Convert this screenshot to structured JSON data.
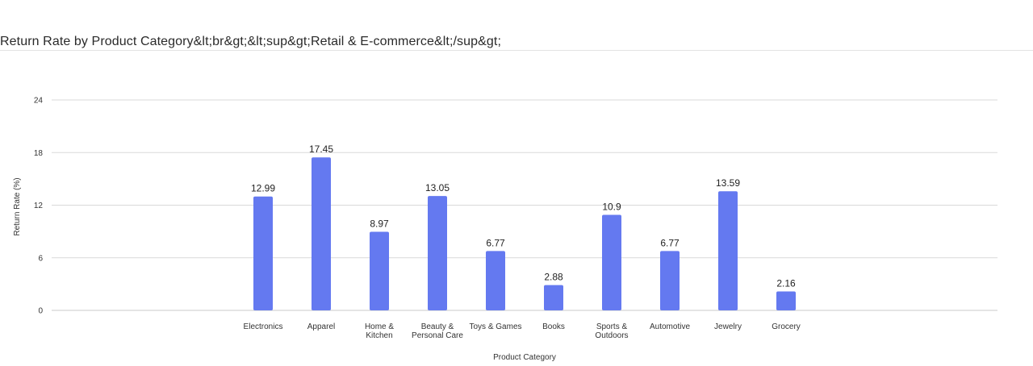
{
  "header": {
    "title": "Return Rate by Product Category&lt;br&gt;&lt;sup&gt;Retail & E-commerce&lt;/sup&gt;"
  },
  "colors": {
    "bar": "#6479f0",
    "grid": "#d9d9d9",
    "axis": "#c8c8c8"
  },
  "chart_data": {
    "type": "bar",
    "title": "Return Rate by Product Category&lt;br&gt;&lt;sup&gt;Retail & E-commerce&lt;/sup&gt;",
    "xlabel": "Product Category",
    "ylabel": "Return Rate (%)",
    "ylim": [
      0,
      24
    ],
    "yticks": [
      0,
      6,
      12,
      18,
      24
    ],
    "grid": true,
    "categories": [
      [
        "Electronics"
      ],
      [
        "Apparel"
      ],
      [
        "Home &",
        "Kitchen"
      ],
      [
        "Beauty &",
        "Personal Care"
      ],
      [
        "Toys & Games"
      ],
      [
        "Books"
      ],
      [
        "Sports &",
        "Outdoors"
      ],
      [
        "Automotive"
      ],
      [
        "Jewelry"
      ],
      [
        "Grocery"
      ]
    ],
    "values": [
      12.99,
      17.45,
      8.97,
      13.05,
      6.77,
      2.88,
      10.9,
      6.77,
      13.59,
      2.16
    ],
    "data_labels": [
      "12.99",
      "17.45",
      "8.97",
      "13.05",
      "6.77",
      "2.88",
      "10.9",
      "6.77",
      "13.59",
      "2.16"
    ]
  }
}
